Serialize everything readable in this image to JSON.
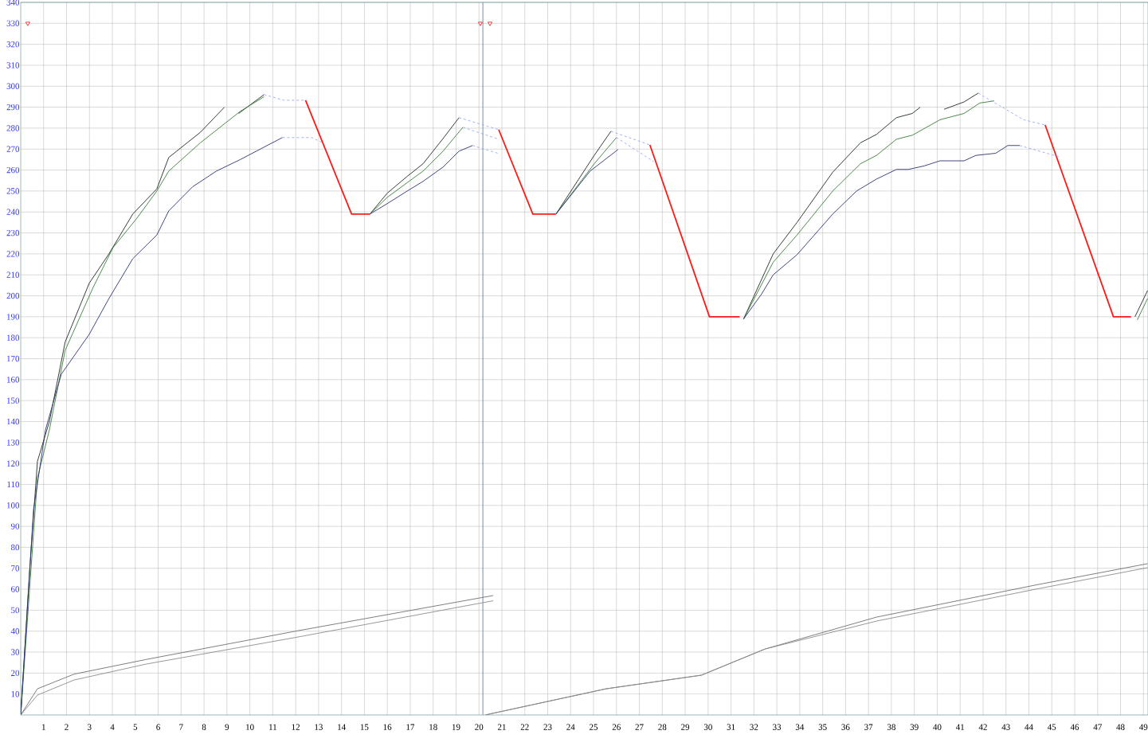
{
  "chart_data": {
    "type": "line",
    "xlim": [
      0,
      49.2
    ],
    "ylim": [
      0,
      340
    ],
    "xticks": [
      1,
      2,
      3,
      4,
      5,
      6,
      7,
      8,
      9,
      10,
      11,
      12,
      13,
      14,
      15,
      16,
      17,
      18,
      19,
      20,
      21,
      22,
      23,
      24,
      25,
      26,
      27,
      28,
      29,
      30,
      31,
      32,
      33,
      34,
      35,
      36,
      37,
      38,
      39,
      40,
      41,
      42,
      43,
      44,
      45,
      46,
      47,
      48,
      49
    ],
    "yticks": [
      10,
      20,
      30,
      40,
      50,
      60,
      70,
      80,
      90,
      100,
      110,
      120,
      130,
      140,
      150,
      160,
      170,
      180,
      190,
      200,
      210,
      220,
      230,
      240,
      250,
      260,
      270,
      280,
      290,
      300,
      310,
      320,
      330,
      340
    ],
    "grid": true,
    "ref_lines": [
      {
        "axis": "x",
        "value": 20.17,
        "color": "#7a8fa0"
      }
    ],
    "series": [
      {
        "color": "#1e2a22",
        "x": [
          0,
          0.38,
          0.73,
          1.25,
          1.94,
          2.99,
          3.85,
          4.89,
          5.94,
          6.46,
          7.84,
          8.89,
          9.2,
          9.51,
          10.62,
          13,
          15.24,
          16.0,
          16.87,
          17.56,
          18.43,
          19.13,
          21,
          23.36,
          25.03,
          25.76,
          28,
          31.55,
          32.84,
          33.88,
          35.44,
          36.65,
          37.35,
          38.22,
          38.91,
          39.26,
          39.8,
          40.3,
          41.17,
          41.79,
          45,
          48.63,
          49.18
        ],
        "values": [
          0,
          67.6,
          121,
          140,
          178,
          206,
          220,
          239,
          251,
          266,
          278,
          290,
          null,
          287,
          296,
          null,
          239,
          249,
          257,
          263,
          275,
          285,
          null,
          239,
          267,
          278.5,
          null,
          189,
          220,
          235,
          259,
          273,
          277,
          285,
          287,
          290,
          null,
          289,
          292.5,
          296.7,
          null,
          190,
          202.5
        ]
      },
      {
        "color": "#3a7d3a",
        "x": [
          0,
          0.73,
          1.25,
          1.94,
          3.16,
          4.03,
          5.07,
          5.94,
          6.46,
          7.84,
          9.58,
          10.62,
          13,
          15.24,
          16.0,
          16.87,
          17.56,
          18.43,
          19.3,
          21,
          23.36,
          25.03,
          26.0,
          28,
          31.55,
          32.84,
          33.88,
          35.44,
          36.65,
          37.35,
          38.22,
          38.91,
          40.12,
          41.17,
          41.86,
          42.49,
          45,
          48.73,
          49.18
        ],
        "values": [
          0,
          113,
          136,
          174,
          204,
          223,
          237,
          250,
          259.5,
          273,
          288,
          295,
          null,
          239,
          247,
          254,
          259.5,
          269,
          280.4,
          null,
          239,
          263,
          275.5,
          null,
          189,
          216,
          229,
          250,
          263,
          267,
          274.7,
          276.6,
          284,
          287,
          292,
          293,
          null,
          188.5,
          198.7
        ]
      },
      {
        "color": "#2b3275",
        "x": [
          0,
          0.56,
          1.08,
          1.77,
          2.99,
          3.85,
          4.89,
          5.94,
          6.46,
          7.5,
          8.54,
          9.58,
          11.42,
          13,
          15.24,
          16.0,
          16.87,
          17.56,
          18.43,
          19.13,
          19.72,
          21,
          23.36,
          24.85,
          26.07,
          28,
          31.55,
          32.32,
          32.84,
          33.88,
          35.44,
          36.48,
          37.35,
          38.22,
          38.74,
          39.44,
          40.12,
          41.17,
          41.69,
          42.55,
          43.08,
          43.6
        ],
        "values": [
          0,
          98,
          136,
          162.6,
          181.6,
          198.7,
          217.7,
          229,
          240.5,
          252,
          259.5,
          265,
          275.5,
          null,
          239,
          244,
          250,
          254.6,
          261.4,
          269,
          271.7,
          null,
          239,
          259.5,
          269.8,
          null,
          189,
          200.6,
          210,
          219.6,
          239,
          250,
          255.7,
          260.3,
          260.3,
          262,
          264.4,
          264.4,
          267,
          268,
          271.7,
          271.7
        ]
      },
      {
        "color": "#ff1a1a",
        "x": [
          12.43,
          14.44,
          15.24,
          18,
          20.86,
          22.35,
          23.36,
          25,
          27.46,
          30.06,
          31.38,
          38,
          44.71,
          47.69,
          48.46
        ],
        "values": [
          293.3,
          239,
          239,
          null,
          279.3,
          239,
          239,
          null,
          272,
          190,
          190,
          null,
          281.5,
          190,
          190
        ]
      },
      {
        "color": "#99a8f5",
        "line_style": "dashed",
        "x": [
          10.62,
          11.49,
          12.43,
          12.0,
          11.42,
          12.7,
          13.22,
          16,
          19.13,
          20.86,
          20.0,
          19.3,
          20.86,
          20.0,
          19.72,
          20.86,
          23,
          25.76,
          27.46,
          26.5,
          26.0,
          27.63,
          35,
          41.79,
          43.77,
          44.71,
          44,
          43.6,
          45.33
        ],
        "values": [
          296,
          293.3,
          293.3,
          null,
          275.5,
          275.5,
          272.8,
          null,
          285,
          279.3,
          null,
          280.4,
          274.7,
          null,
          271.7,
          267.9,
          null,
          278.5,
          272,
          null,
          275.5,
          264,
          null,
          296.7,
          284,
          281.5,
          null,
          271.7,
          266.3
        ]
      },
      {
        "color": "#8c8c8c",
        "x": [
          0,
          0.73,
          2.33,
          5.48,
          12,
          20.62
        ],
        "values": [
          0,
          9.5,
          16.7,
          24.3,
          37,
          54.5
        ]
      },
      {
        "color": "#707070",
        "x": [
          0,
          0.73,
          2.33,
          5.48,
          12,
          20.62
        ],
        "values": [
          0,
          12.5,
          19.5,
          26.5,
          40,
          57
        ]
      },
      {
        "color": "#707070",
        "x": [
          20.27,
          25.55,
          29.71,
          32.49,
          37.35,
          44.29,
          49.18
        ],
        "values": [
          0,
          12.5,
          19,
          31.5,
          46.7,
          62,
          72.2
        ]
      },
      {
        "color": "#8c8c8c",
        "x": [
          20.27,
          25.55,
          29.71,
          32.49,
          37.35,
          44.29,
          49.18
        ],
        "values": [
          0,
          12.5,
          19,
          31.5,
          44.8,
          60,
          70.3
        ]
      },
      {
        "type": "scatter",
        "marker": "triangle",
        "color": "#e03030",
        "x": [
          0.31,
          20.06,
          20.48
        ],
        "values": [
          330,
          330,
          330
        ]
      }
    ]
  }
}
